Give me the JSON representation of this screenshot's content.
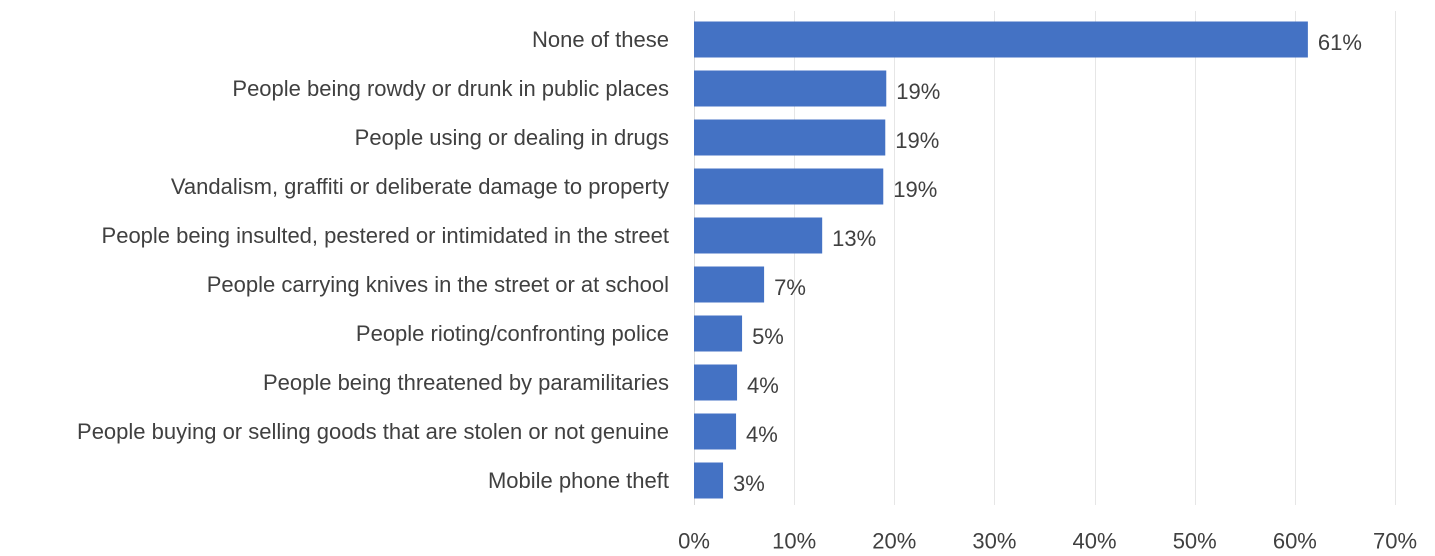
{
  "chart_data": {
    "type": "bar",
    "orientation": "horizontal",
    "categories": [
      "None of these",
      "People being rowdy or drunk in public places",
      "People using or dealing in drugs",
      "Vandalism, graffiti or deliberate damage to property",
      "People being insulted, pestered or intimidated in the street",
      "People carrying knives in the street or at school",
      "People rioting/confronting police",
      "People being threatened by paramilitaries",
      "People buying or selling goods that are stolen or not genuine",
      "Mobile phone theft"
    ],
    "values": [
      61.3,
      19.2,
      19.1,
      18.9,
      12.8,
      7.0,
      4.8,
      4.3,
      4.2,
      2.9
    ],
    "value_labels": [
      "61%",
      "19%",
      "19%",
      "19%",
      "13%",
      "7%",
      "5%",
      "4%",
      "4%",
      "3%"
    ],
    "x_ticks": [
      0,
      10,
      20,
      30,
      40,
      50,
      60,
      70
    ],
    "x_tick_labels": [
      "0%",
      "10%",
      "20%",
      "30%",
      "40%",
      "50%",
      "60%",
      "70%"
    ],
    "xlim": [
      0,
      70
    ],
    "grid": true,
    "bar_color": "#4472c4",
    "text_color": "#404040",
    "grid_color": "#e6e6e6"
  }
}
